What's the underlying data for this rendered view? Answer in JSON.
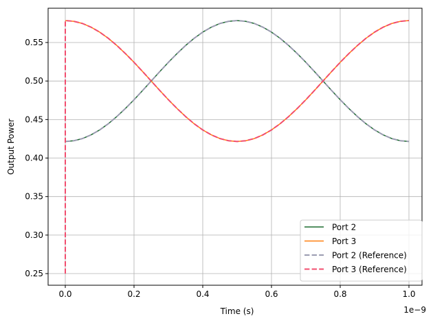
{
  "chart_data": {
    "type": "line",
    "title": "",
    "xlabel": "Time (s)",
    "ylabel": "Output Power",
    "x_offset_label": "1e−9",
    "xlim": [
      -0.05,
      1.038
    ],
    "ylim": [
      0.2349,
      0.5945
    ],
    "xticks": [
      0.0,
      0.2,
      0.4,
      0.6,
      0.8,
      1.0
    ],
    "xtick_labels": [
      "0.0",
      "0.2",
      "0.4",
      "0.6",
      "0.8",
      "1.0"
    ],
    "yticks": [
      0.25,
      0.3,
      0.35,
      0.4,
      0.45,
      0.5,
      0.55
    ],
    "ytick_labels": [
      "0.25",
      "0.30",
      "0.35",
      "0.40",
      "0.45",
      "0.50",
      "0.55"
    ],
    "grid": true,
    "legend_position": "bottom-right",
    "x": [
      0,
      0.025,
      0.05,
      0.075,
      0.1,
      0.125,
      0.15,
      0.175,
      0.2,
      0.225,
      0.25,
      0.275,
      0.3,
      0.325,
      0.35,
      0.375,
      0.4,
      0.425,
      0.45,
      0.475,
      0.5,
      0.525,
      0.55,
      0.575,
      0.6,
      0.625,
      0.65,
      0.675,
      0.7,
      0.725,
      0.75,
      0.775,
      0.8,
      0.825,
      0.85,
      0.875,
      0.9,
      0.925,
      0.95,
      0.975,
      1.0
    ],
    "series": [
      {
        "name": "Port 2",
        "color": "#1b6b2e",
        "style": "solid",
        "y": [
          0.4215,
          0.4225,
          0.4253,
          0.4301,
          0.4365,
          0.4445,
          0.4539,
          0.4644,
          0.4757,
          0.4877,
          0.5,
          0.5123,
          0.5243,
          0.5356,
          0.5461,
          0.5555,
          0.5635,
          0.5699,
          0.5747,
          0.5775,
          0.5785,
          0.5775,
          0.5747,
          0.5699,
          0.5635,
          0.5555,
          0.5461,
          0.5356,
          0.5243,
          0.5123,
          0.5,
          0.4877,
          0.4757,
          0.4644,
          0.4539,
          0.4445,
          0.4365,
          0.4301,
          0.4253,
          0.4225,
          0.4215
        ]
      },
      {
        "name": "Port 3",
        "color": "#ff7f0e",
        "style": "solid",
        "y": [
          0.5785,
          0.5775,
          0.5747,
          0.5699,
          0.5635,
          0.5555,
          0.5461,
          0.5356,
          0.5243,
          0.5123,
          0.5,
          0.4877,
          0.4757,
          0.4644,
          0.4539,
          0.4445,
          0.4365,
          0.4301,
          0.4253,
          0.4225,
          0.4215,
          0.4225,
          0.4253,
          0.4301,
          0.4365,
          0.4445,
          0.4539,
          0.4644,
          0.4757,
          0.4877,
          0.5,
          0.5123,
          0.5243,
          0.5356,
          0.5461,
          0.5555,
          0.5635,
          0.5699,
          0.5747,
          0.5775,
          0.5785
        ]
      },
      {
        "name": "Port 2 (Reference)",
        "color": "#9a9bb0",
        "style": "dashed",
        "y": [
          0.4215,
          0.4225,
          0.4253,
          0.4301,
          0.4365,
          0.4445,
          0.4539,
          0.4644,
          0.4757,
          0.4877,
          0.5,
          0.5123,
          0.5243,
          0.5356,
          0.5461,
          0.5555,
          0.5635,
          0.5699,
          0.5747,
          0.5775,
          0.5785,
          0.5775,
          0.5747,
          0.5699,
          0.5635,
          0.5555,
          0.5461,
          0.5356,
          0.5243,
          0.5123,
          0.5,
          0.4877,
          0.4757,
          0.4644,
          0.4539,
          0.4445,
          0.4365,
          0.4301,
          0.4253,
          0.4225,
          0.4215
        ]
      },
      {
        "name": "Port 3 (Reference)",
        "color": "#f24d6e",
        "style": "dashed",
        "x": [
          0,
          0,
          0.025,
          0.05,
          0.075,
          0.1,
          0.125,
          0.15,
          0.175,
          0.2,
          0.225,
          0.25,
          0.275,
          0.3,
          0.325,
          0.35,
          0.375,
          0.4,
          0.425,
          0.45,
          0.475,
          0.5,
          0.525,
          0.55,
          0.575,
          0.6,
          0.625,
          0.65,
          0.675,
          0.7,
          0.725,
          0.75,
          0.775,
          0.8,
          0.825,
          0.85,
          0.875,
          0.9,
          0.925,
          0.95,
          0.975,
          1.0
        ],
        "y": [
          0.25,
          0.5785,
          0.5775,
          0.5747,
          0.5699,
          0.5635,
          0.5555,
          0.5461,
          0.5356,
          0.5243,
          0.5123,
          0.5,
          0.4877,
          0.4757,
          0.4644,
          0.4539,
          0.4445,
          0.4365,
          0.4301,
          0.4253,
          0.4225,
          0.4215,
          0.4225,
          0.4253,
          0.4301,
          0.4365,
          0.4445,
          0.4539,
          0.4644,
          0.4757,
          0.4877,
          0.5,
          0.5123,
          0.5243,
          0.5356,
          0.5461,
          0.5555,
          0.5635,
          0.5699,
          0.5747,
          0.5775,
          0.5785
        ]
      }
    ]
  }
}
